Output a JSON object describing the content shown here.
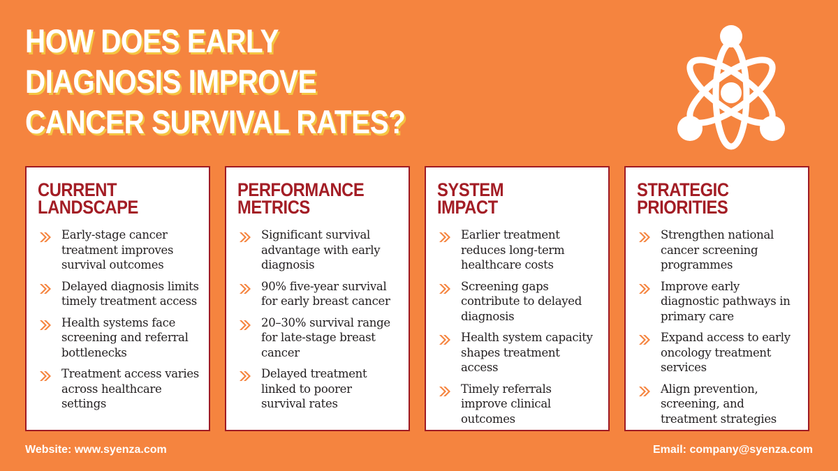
{
  "title": {
    "line1": "HOW DOES EARLY",
    "line2": "DIAGNOSIS IMPROVE",
    "line3": "CANCER SURVIVAL RATES?"
  },
  "colors": {
    "background": "#f5843f",
    "card_border": "#9e1b24",
    "card_heading": "#a31d25",
    "arrow": "#f5843f",
    "title_shadow": "#f4c542"
  },
  "cards": [
    {
      "heading_line1": "CURRENT",
      "heading_line2": "LANDSCAPE",
      "items": [
        "Early-stage cancer treatment improves survival outcomes",
        "Delayed diagnosis limits timely treatment access",
        "Health systems face screening and referral bottlenecks",
        "Treatment access varies across healthcare settings"
      ]
    },
    {
      "heading_line1": "PERFORMANCE",
      "heading_line2": "METRICS",
      "items": [
        "Significant survival advantage with early diagnosis",
        "90% five-year survival for early breast cancer",
        "20–30% survival range for late-stage breast cancer",
        "Delayed treatment linked to poorer survival rates"
      ]
    },
    {
      "heading_line1": "SYSTEM",
      "heading_line2": "IMPACT",
      "items": [
        "Earlier treatment reduces long-term healthcare costs",
        "Screening gaps contribute to delayed diagnosis",
        "Health system capacity shapes treatment access",
        "Timely referrals improve clinical outcomes"
      ]
    },
    {
      "heading_line1": "STRATEGIC",
      "heading_line2": "PRIORITIES",
      "items": [
        "Strengthen national cancer screening programmes",
        "Improve early diagnostic pathways in primary care",
        "Expand access to early oncology treatment services",
        "Align prevention, screening, and treatment strategies"
      ]
    }
  ],
  "footer": {
    "website": "Website: www.syenza.com",
    "email": "Email: company@syenza.com"
  },
  "icons": {
    "logo": "atom-people-logo-icon",
    "bullet": "double-chevron-right-icon"
  }
}
